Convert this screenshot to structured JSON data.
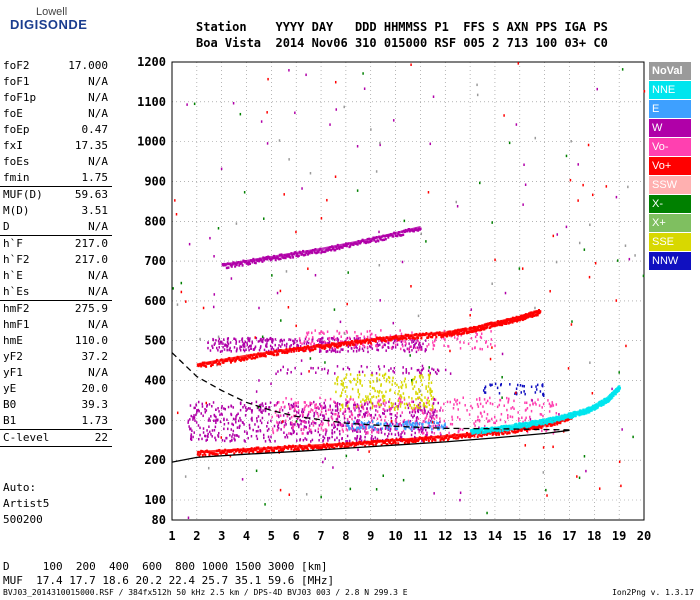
{
  "logo": {
    "line1": "Lowell",
    "line2": "DIGISONDE"
  },
  "header": {
    "line1": "Station    YYYY DAY   DDD HHMMSS P1  FFS S AXN PPS IGA PS",
    "line2": "Boa Vista  2014 Nov06 310 015000 RSF 005 2 713 100 03+ C0"
  },
  "params": [
    {
      "name": "foF2",
      "value": "17.000"
    },
    {
      "name": "foF1",
      "value": "N/A"
    },
    {
      "name": "foF1p",
      "value": "N/A"
    },
    {
      "name": "foE",
      "value": "N/A"
    },
    {
      "name": "foEp",
      "value": "0.47"
    },
    {
      "name": "fxI",
      "value": "17.35"
    },
    {
      "name": "foEs",
      "value": "N/A"
    },
    {
      "name": "fmin",
      "value": "1.75"
    },
    {
      "sep": true
    },
    {
      "name": "MUF(D)",
      "value": "59.63"
    },
    {
      "name": "M(D)",
      "value": "3.51"
    },
    {
      "name": "D",
      "value": "N/A"
    },
    {
      "sep": true
    },
    {
      "name": "h`F",
      "value": "217.0"
    },
    {
      "name": "h`F2",
      "value": "217.0"
    },
    {
      "name": "h`E",
      "value": "N/A"
    },
    {
      "name": "h`Es",
      "value": "N/A"
    },
    {
      "sep": true
    },
    {
      "name": "hmF2",
      "value": "275.9"
    },
    {
      "name": "hmF1",
      "value": "N/A"
    },
    {
      "name": "hmE",
      "value": "110.0"
    },
    {
      "name": "yF2",
      "value": "37.2"
    },
    {
      "name": "yF1",
      "value": "N/A"
    },
    {
      "name": "yE",
      "value": "20.0"
    },
    {
      "name": "B0",
      "value": "39.3"
    },
    {
      "name": "B1",
      "value": "1.73"
    },
    {
      "sep": true
    },
    {
      "name": "C-level",
      "value": "22"
    },
    {
      "sep": true
    }
  ],
  "auto": {
    "line1": "Auto:",
    "line2": "Artist5",
    "line3": "500200"
  },
  "bottom": {
    "line1": "D     100  200  400  600  800 1000 1500 3000 [km]",
    "line2": "MUF  17.4 17.7 18.6 20.2 22.4 25.7 35.1 59.6 [MHz]"
  },
  "footer": {
    "left": "BVJ03_2014310015000.RSF / 384fx512h 50 kHz 2.5 km / DPS-4D BVJ03 003 / 2.8 N 299.3 E",
    "right": "Ion2Png v. 1.3.17"
  },
  "chart_data": {
    "type": "scatter",
    "x_ticks": [
      1,
      2,
      3,
      4,
      5,
      6,
      7,
      8,
      9,
      10,
      11,
      12,
      13,
      14,
      15,
      16,
      17,
      18,
      19,
      20
    ],
    "y_ticks": [
      80,
      100,
      200,
      300,
      400,
      500,
      600,
      700,
      800,
      900,
      1000,
      1100,
      1200
    ],
    "xlim": [
      1,
      20
    ],
    "ylim": [
      80,
      1200
    ],
    "grid": true,
    "legend": [
      {
        "name": "NoVal",
        "color": "#9a9a9a"
      },
      {
        "name": "NNE",
        "color": "#00e5ee"
      },
      {
        "name": "E",
        "color": "#3ea0ff"
      },
      {
        "name": "W",
        "color": "#b000a8"
      },
      {
        "name": "Vo-",
        "color": "#ff40b0"
      },
      {
        "name": "Vo+",
        "color": "#ff0000"
      },
      {
        "name": "SSW",
        "color": "#ffb0b0"
      },
      {
        "name": "X-",
        "color": "#008000"
      },
      {
        "name": "X+",
        "color": "#7fbf60"
      },
      {
        "name": "SSE",
        "color": "#d8d800"
      },
      {
        "name": "NNW",
        "color": "#1010c0"
      }
    ],
    "traces": [
      {
        "name": "O-trace",
        "color": "#ff0000",
        "x": [
          2,
          4,
          6,
          8,
          10,
          12,
          14,
          15.5,
          16.5,
          17.2
        ],
        "y": [
          220,
          227,
          234,
          241,
          250,
          260,
          272,
          285,
          300,
          318
        ]
      },
      {
        "name": "NNE-trace",
        "color": "#00e5ee",
        "x": [
          13,
          14,
          15,
          16,
          17,
          17.8,
          18.5,
          19
        ],
        "y": [
          275,
          280,
          290,
          300,
          315,
          330,
          355,
          385
        ]
      },
      {
        "name": "2F-trace",
        "color": "#ff0000",
        "x": [
          2,
          4,
          6,
          8,
          10,
          12,
          13,
          14,
          15,
          15.8
        ],
        "y": [
          440,
          462,
          480,
          495,
          510,
          520,
          530,
          545,
          560,
          575
        ]
      },
      {
        "name": "3F-trace",
        "color": "#b000a8",
        "x": [
          3,
          5,
          7,
          9,
          11
        ],
        "y": [
          690,
          710,
          730,
          755,
          785
        ]
      }
    ],
    "profile": {
      "color": "#000000",
      "x": [
        1,
        2,
        4,
        6,
        8,
        10,
        12,
        14,
        16,
        17
      ],
      "y": [
        195,
        207,
        215,
        222,
        230,
        238,
        246,
        256,
        267,
        275
      ]
    },
    "profile_dashed": {
      "color": "#000000",
      "x": [
        1,
        2,
        3,
        4,
        5,
        6,
        8,
        10,
        12,
        14,
        15,
        16,
        17
      ],
      "y": [
        470,
        410,
        375,
        345,
        325,
        310,
        293,
        285,
        280,
        279,
        278,
        277,
        276
      ]
    },
    "scatter_regions": [
      {
        "color": "#b000a8",
        "x": [
          1.6,
          11.8
        ],
        "y": [
          250,
          350
        ],
        "n": 700
      },
      {
        "color": "#ff40b0",
        "x": [
          5,
          16.5
        ],
        "y": [
          270,
          360
        ],
        "n": 420
      },
      {
        "color": "#d8d800",
        "x": [
          7.5,
          11.5
        ],
        "y": [
          330,
          420
        ],
        "n": 220
      },
      {
        "color": "#1010c0",
        "x": [
          13.5,
          16
        ],
        "y": [
          365,
          395
        ],
        "n": 40
      },
      {
        "color": "#b000a8",
        "x": [
          2.4,
          11.2
        ],
        "y": [
          475,
          510
        ],
        "n": 380
      },
      {
        "color": "#ff40b0",
        "x": [
          6,
          14
        ],
        "y": [
          480,
          530
        ],
        "n": 160
      },
      {
        "color": "#3ea0ff",
        "x": [
          8,
          12
        ],
        "y": [
          280,
          300
        ],
        "n": 120
      },
      {
        "color": "#ff0000",
        "x": [
          1,
          20
        ],
        "y": [
          80,
          1200
        ],
        "n": 70
      },
      {
        "color": "#008000",
        "x": [
          1,
          20
        ],
        "y": [
          80,
          1200
        ],
        "n": 50
      },
      {
        "color": "#b000a8",
        "x": [
          1,
          20
        ],
        "y": [
          80,
          1200
        ],
        "n": 70
      },
      {
        "color": "#9a9a9a",
        "x": [
          1,
          20
        ],
        "y": [
          80,
          1200
        ],
        "n": 40
      },
      {
        "color": "#b000a8",
        "x": [
          5,
          12
        ],
        "y": [
          420,
          440
        ],
        "n": 60
      }
    ]
  }
}
